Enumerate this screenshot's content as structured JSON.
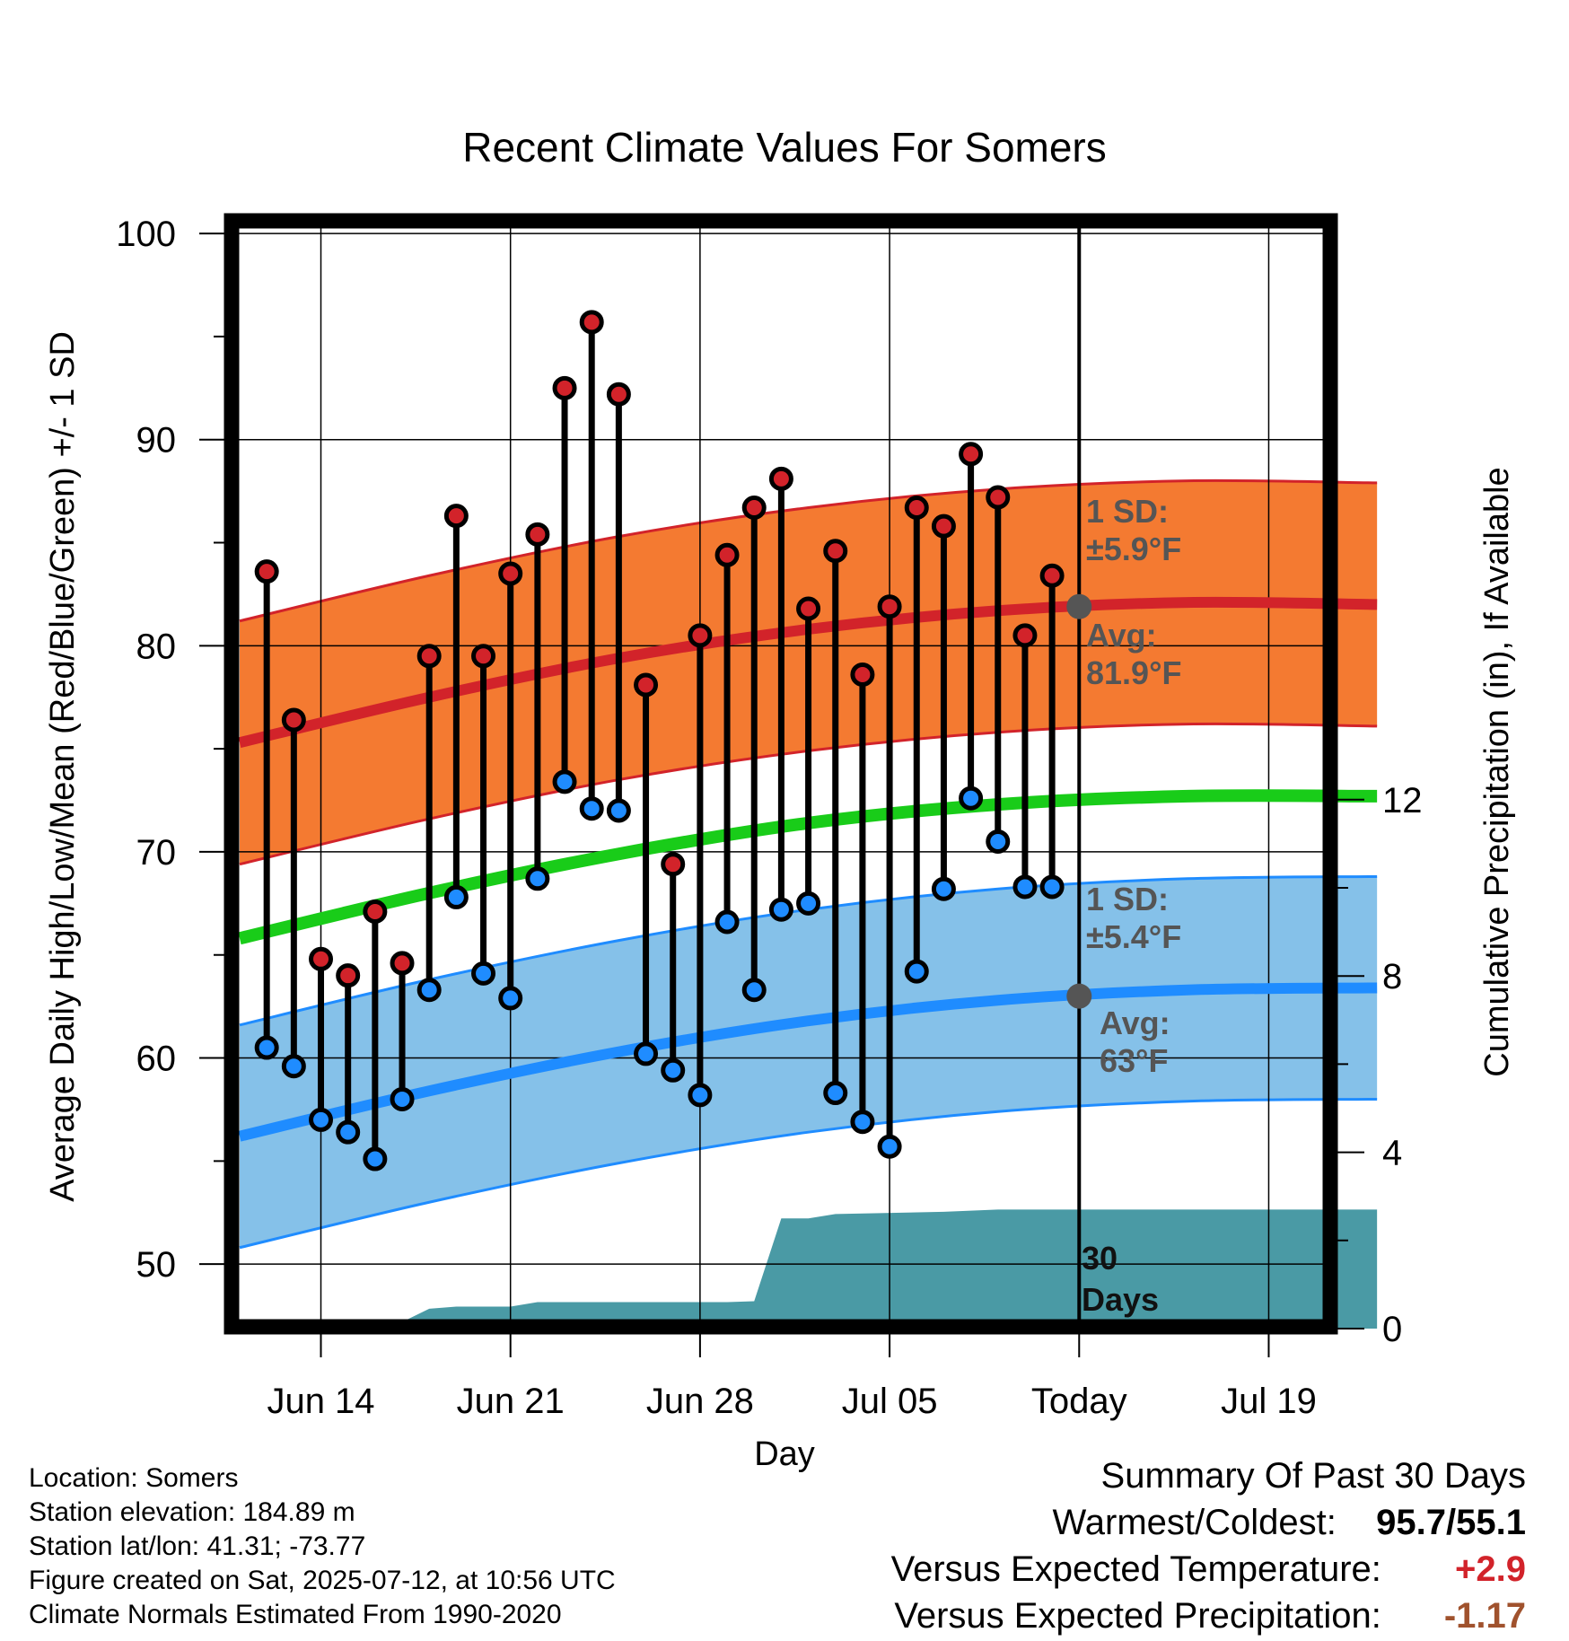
{
  "chart_data": {
    "type": "line",
    "title": "Recent Climate Values For Somers",
    "xlabel": "Day",
    "ylabel": "Average Daily High/Low/Mean (Red/Blue/Green) +/- 1 SD",
    "y2label": "Cumulative Precipitation (in), If Available",
    "ylim": [
      47,
      101
    ],
    "y2lim": [
      0,
      25
    ],
    "y_ticks": [
      "50",
      "60",
      "70",
      "80",
      "90",
      "100"
    ],
    "y2_ticks": [
      "0",
      "4",
      "8",
      "12"
    ],
    "x_tick_labels": [
      "Jun 14",
      "Jun 21",
      "Jun 28",
      "Jul 05",
      "Today",
      "Jul 19"
    ],
    "grid": true,
    "days": [
      "2025-06-12",
      "2025-06-13",
      "2025-06-14",
      "2025-06-15",
      "2025-06-16",
      "2025-06-17",
      "2025-06-18",
      "2025-06-19",
      "2025-06-20",
      "2025-06-21",
      "2025-06-22",
      "2025-06-23",
      "2025-06-24",
      "2025-06-25",
      "2025-06-26",
      "2025-06-27",
      "2025-06-28",
      "2025-06-29",
      "2025-06-30",
      "2025-07-01",
      "2025-07-02",
      "2025-07-03",
      "2025-07-04",
      "2025-07-05",
      "2025-07-06",
      "2025-07-07",
      "2025-07-08",
      "2025-07-09",
      "2025-07-10",
      "2025-07-11"
    ],
    "highs": [
      83.6,
      76.4,
      64.8,
      64.0,
      67.1,
      64.6,
      79.5,
      86.3,
      79.5,
      83.5,
      85.4,
      92.5,
      95.7,
      92.2,
      78.1,
      69.4,
      80.5,
      84.4,
      86.7,
      88.1,
      81.8,
      84.6,
      78.6,
      81.9,
      86.7,
      85.8,
      89.3,
      87.2,
      80.5,
      83.4
    ],
    "lows": [
      60.5,
      59.6,
      57.0,
      56.4,
      55.1,
      58.0,
      63.3,
      67.8,
      64.1,
      62.9,
      68.7,
      73.4,
      72.1,
      72.0,
      60.2,
      59.4,
      58.2,
      66.6,
      63.3,
      67.2,
      67.5,
      58.3,
      56.9,
      55.7,
      64.2,
      68.2,
      72.6,
      70.5,
      68.3,
      68.3
    ],
    "normals": {
      "x": [
        "2025-06-11",
        "2025-06-18",
        "2025-06-25",
        "2025-07-02",
        "2025-07-09",
        "2025-07-16",
        "2025-07-23"
      ],
      "high_mean": [
        75.3,
        77.5,
        79.4,
        80.8,
        81.7,
        82.1,
        82.0
      ],
      "high_sd": 5.9,
      "low_mean": [
        56.2,
        58.4,
        60.3,
        61.8,
        62.8,
        63.3,
        63.4
      ],
      "low_sd": 5.4,
      "daily_mean": [
        65.8,
        68.0,
        69.9,
        71.4,
        72.3,
        72.7,
        72.7
      ]
    },
    "precip_cumulative": {
      "x": [
        "2025-06-11",
        "2025-06-16",
        "2025-06-17",
        "2025-06-18",
        "2025-06-19",
        "2025-06-21",
        "2025-06-22",
        "2025-06-29",
        "2025-06-30",
        "2025-07-01",
        "2025-07-02",
        "2025-07-03",
        "2025-07-07",
        "2025-07-09",
        "2025-07-23"
      ],
      "values": [
        0.0,
        0.05,
        0.15,
        0.45,
        0.5,
        0.5,
        0.6,
        0.6,
        0.62,
        2.5,
        2.5,
        2.6,
        2.65,
        2.7,
        2.7
      ]
    },
    "annotations": {
      "high_sd_label": "1 SD:",
      "high_sd_value": "±5.9°F",
      "high_avg_label": "Avg:",
      "high_avg_value": "81.9°F",
      "low_sd_label": "1 SD:",
      "low_sd_value": "±5.4°F",
      "low_avg_label": "Avg:",
      "low_avg_value": "63°F",
      "days_line1": "30",
      "days_line2": "Days"
    },
    "colors": {
      "high_band": "#f47a31",
      "high_line": "#d2232a",
      "low_band": "#85c1e9",
      "low_line": "#1f8cff",
      "mean_line": "#19cc19",
      "precip": "#4a9aa5",
      "high_marker": "#d2232a",
      "low_marker": "#1f8cff",
      "today_marker": "#555555"
    }
  },
  "info": {
    "location": "Location: Somers",
    "elevation": "Station elevation: 184.89 m",
    "latlon": "Station lat/lon: 41.31; -73.77",
    "created": "Figure created on Sat, 2025-07-12, at 10:56 UTC",
    "normals": "Climate Normals Estimated From 1990-2020"
  },
  "summary": {
    "heading": "Summary Of Past 30 Days",
    "warm_cold_label": "Warmest/Coldest:",
    "warm_cold_value": "95.7/55.1",
    "temp_label": "Versus Expected Temperature:",
    "temp_value": "+2.9",
    "precip_label": "Versus Expected Precipitation:",
    "precip_value": "-1.17",
    "temp_color": "#d2232a",
    "precip_color": "#a0522d"
  }
}
